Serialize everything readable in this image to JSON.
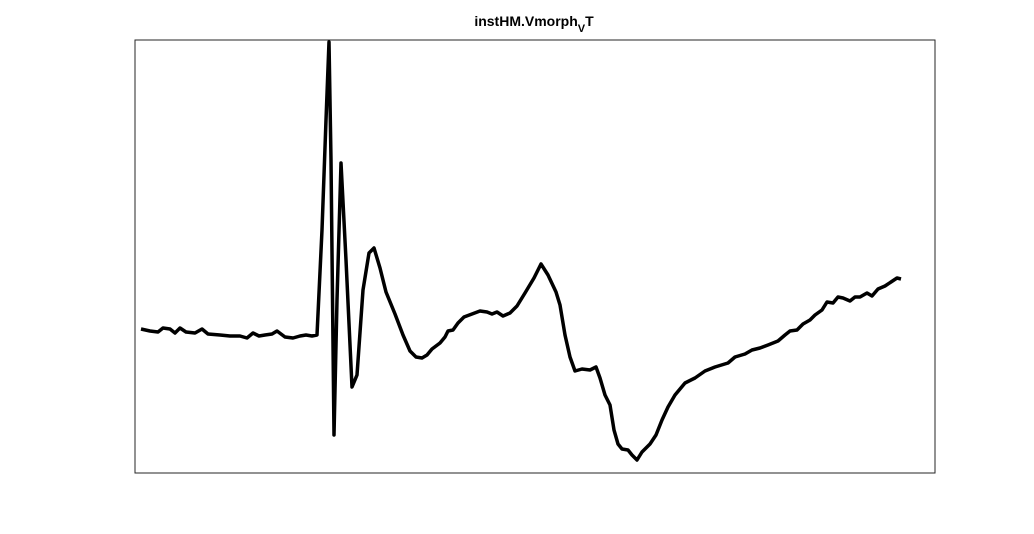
{
  "chart_data": {
    "type": "line",
    "title": {
      "text": "instHM.Vmorph",
      "subscript": "V",
      "suffix": "T"
    },
    "xlim": [
      0,
      800
    ],
    "ylim": [
      0,
      433
    ],
    "series": [
      {
        "color": "#000000",
        "x": [
          6,
          15,
          23,
          28,
          35,
          40,
          45,
          51,
          60,
          67,
          73,
          85,
          95,
          105,
          112,
          118,
          124,
          130,
          137,
          142,
          150,
          158,
          165,
          171,
          177,
          182,
          187,
          191,
          194,
          196,
          199,
          202,
          206,
          211,
          217,
          222,
          228,
          234,
          239,
          245,
          251,
          260,
          268,
          275,
          281,
          287,
          292,
          297,
          305,
          310,
          313,
          318,
          323,
          329,
          337,
          345,
          352,
          357,
          362,
          368,
          375,
          382,
          390,
          399,
          406,
          413,
          421,
          425,
          430,
          435,
          440,
          447,
          455,
          461,
          465,
          470,
          475,
          479,
          483,
          487,
          493,
          497,
          502,
          507,
          515,
          521,
          527,
          533,
          540,
          550,
          560,
          570,
          580,
          593,
          600,
          610,
          617,
          625,
          633,
          643,
          650,
          655,
          662,
          668,
          675,
          680,
          687,
          692,
          698,
          703,
          708,
          715,
          720,
          725,
          732,
          737,
          743,
          750,
          756,
          762,
          766
        ],
        "values": [
          144,
          142,
          141,
          145,
          144,
          140,
          145,
          141,
          140,
          144,
          139,
          138,
          137,
          137,
          135,
          140,
          137,
          138,
          139,
          142,
          136,
          135,
          137,
          138,
          137,
          138,
          243,
          353,
          431,
          313,
          38,
          173,
          310,
          213,
          86,
          98,
          183,
          220,
          225,
          205,
          181,
          159,
          138,
          122,
          116,
          115,
          118,
          124,
          130,
          136,
          142,
          143,
          150,
          156,
          159,
          162,
          161,
          159,
          161,
          157,
          160,
          167,
          180,
          195,
          209,
          198,
          181,
          168,
          138,
          116,
          102,
          104,
          103,
          106,
          95,
          78,
          68,
          43,
          29,
          24,
          23,
          18,
          13,
          21,
          29,
          38,
          53,
          66,
          78,
          90,
          95,
          102,
          106,
          110,
          116,
          119,
          123,
          125,
          128,
          132,
          138,
          142,
          143,
          149,
          153,
          158,
          163,
          171,
          170,
          176,
          175,
          172,
          176,
          176,
          180,
          177,
          184,
          187,
          191,
          195,
          194
        ]
      }
    ]
  }
}
